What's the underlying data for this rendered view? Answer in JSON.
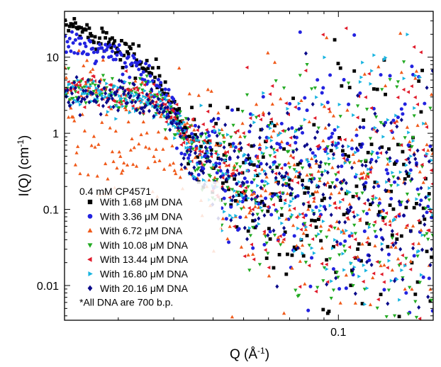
{
  "chart_data": {
    "type": "scatter",
    "title": "",
    "xlabel": {
      "base": "Q (Å",
      "sup": "-1",
      "close": ")"
    },
    "ylabel": {
      "base": "I(Q) (cm",
      "sup": "-1",
      "close": ")"
    },
    "x_scale": "log",
    "y_scale": "log",
    "xlim": [
      0.0135,
      0.2
    ],
    "ylim": [
      0.0035,
      40
    ],
    "x_ticks": [
      {
        "value": 0.1,
        "label": "0.1"
      }
    ],
    "y_ticks": [
      {
        "value": 0.01,
        "label": "0.01"
      },
      {
        "value": 0.1,
        "label": "0.1"
      },
      {
        "value": 1,
        "label": "1"
      },
      {
        "value": 10,
        "label": "10"
      }
    ],
    "grid": false,
    "legend": {
      "placement": "bottom-left",
      "header": "0.4 mM CP4571",
      "footnote": "*All DNA are 700 b.p."
    },
    "series": [
      {
        "name": "With 1.68 μM DNA",
        "marker": "square",
        "color": "#000000",
        "profile": [
          [
            0.0143,
            25
          ],
          [
            0.02,
            15
          ],
          [
            0.026,
            6
          ],
          [
            0.03,
            2.2
          ],
          [
            0.035,
            0.6
          ],
          [
            0.045,
            0.3
          ],
          [
            0.07,
            0.22
          ],
          [
            0.12,
            0.17
          ],
          [
            0.2,
            0.14
          ]
        ],
        "scatter_decades": [
          [
            0.0143,
            0.08
          ],
          [
            0.03,
            0.12
          ],
          [
            0.04,
            0.3
          ],
          [
            0.06,
            0.6
          ],
          [
            0.1,
            0.9
          ],
          [
            0.2,
            1.2
          ]
        ]
      },
      {
        "name": "With 3.36 μM DNA",
        "marker": "circle",
        "color": "#2222e0",
        "profile": [
          [
            0.0143,
            15
          ],
          [
            0.02,
            10
          ],
          [
            0.026,
            5
          ],
          [
            0.03,
            2.0
          ],
          [
            0.035,
            0.55
          ],
          [
            0.045,
            0.3
          ],
          [
            0.07,
            0.22
          ],
          [
            0.12,
            0.17
          ],
          [
            0.2,
            0.14
          ]
        ],
        "scatter_decades": [
          [
            0.0143,
            0.08
          ],
          [
            0.03,
            0.12
          ],
          [
            0.04,
            0.3
          ],
          [
            0.06,
            0.6
          ],
          [
            0.1,
            0.9
          ],
          [
            0.2,
            1.2
          ]
        ]
      },
      {
        "name": "With 6.72 μM DNA",
        "marker": "triangle-up",
        "color": "#f05a1a",
        "profile": [
          [
            0.0143,
            3.5
          ],
          [
            0.016,
            1.2
          ],
          [
            0.02,
            0.5
          ],
          [
            0.024,
            0.85
          ],
          [
            0.028,
            0.9
          ],
          [
            0.032,
            0.6
          ],
          [
            0.04,
            0.3
          ],
          [
            0.07,
            0.2
          ],
          [
            0.12,
            0.16
          ],
          [
            0.2,
            0.13
          ]
        ],
        "scatter_decades": [
          [
            0.0143,
            0.45
          ],
          [
            0.025,
            0.45
          ],
          [
            0.035,
            0.4
          ],
          [
            0.06,
            0.7
          ],
          [
            0.1,
            0.95
          ],
          [
            0.2,
            1.2
          ]
        ]
      },
      {
        "name": "With 10.08 μM DNA",
        "marker": "triangle-down",
        "color": "#22aa22",
        "profile": [
          [
            0.0143,
            4
          ],
          [
            0.02,
            3.2
          ],
          [
            0.026,
            2.8
          ],
          [
            0.03,
            1.6
          ],
          [
            0.035,
            0.55
          ],
          [
            0.045,
            0.3
          ],
          [
            0.07,
            0.22
          ],
          [
            0.12,
            0.17
          ],
          [
            0.2,
            0.14
          ]
        ],
        "scatter_decades": [
          [
            0.0143,
            0.1
          ],
          [
            0.03,
            0.12
          ],
          [
            0.04,
            0.3
          ],
          [
            0.06,
            0.6
          ],
          [
            0.1,
            0.9
          ],
          [
            0.2,
            1.2
          ]
        ]
      },
      {
        "name": "With 13.44 μM DNA",
        "marker": "triangle-left",
        "color": "#e01a2a",
        "profile": [
          [
            0.0143,
            4
          ],
          [
            0.02,
            3.2
          ],
          [
            0.026,
            2.8
          ],
          [
            0.03,
            1.6
          ],
          [
            0.035,
            0.55
          ],
          [
            0.045,
            0.3
          ],
          [
            0.07,
            0.22
          ],
          [
            0.12,
            0.17
          ],
          [
            0.2,
            0.14
          ]
        ],
        "scatter_decades": [
          [
            0.0143,
            0.1
          ],
          [
            0.03,
            0.12
          ],
          [
            0.04,
            0.3
          ],
          [
            0.06,
            0.6
          ],
          [
            0.1,
            0.9
          ],
          [
            0.2,
            1.2
          ]
        ]
      },
      {
        "name": "With 16.80 μM DNA",
        "marker": "triangle-right",
        "color": "#18b4e0",
        "profile": [
          [
            0.0143,
            3.5
          ],
          [
            0.02,
            3.0
          ],
          [
            0.026,
            2.6
          ],
          [
            0.03,
            1.5
          ],
          [
            0.035,
            0.5
          ],
          [
            0.045,
            0.3
          ],
          [
            0.07,
            0.22
          ],
          [
            0.12,
            0.17
          ],
          [
            0.2,
            0.14
          ]
        ],
        "scatter_decades": [
          [
            0.0143,
            0.1
          ],
          [
            0.03,
            0.12
          ],
          [
            0.04,
            0.3
          ],
          [
            0.06,
            0.6
          ],
          [
            0.1,
            0.9
          ],
          [
            0.2,
            1.2
          ]
        ]
      },
      {
        "name": "With 20.16 μM DNA",
        "marker": "diamond",
        "color": "#0a0a8a",
        "profile": [
          [
            0.0143,
            3.5
          ],
          [
            0.02,
            3.0
          ],
          [
            0.026,
            2.6
          ],
          [
            0.03,
            1.5
          ],
          [
            0.035,
            0.5
          ],
          [
            0.045,
            0.3
          ],
          [
            0.07,
            0.22
          ],
          [
            0.12,
            0.17
          ],
          [
            0.2,
            0.14
          ]
        ],
        "scatter_decades": [
          [
            0.0143,
            0.1
          ],
          [
            0.03,
            0.12
          ],
          [
            0.04,
            0.3
          ],
          [
            0.06,
            0.5
          ],
          [
            0.1,
            0.6
          ],
          [
            0.2,
            0.7
          ]
        ]
      }
    ]
  }
}
